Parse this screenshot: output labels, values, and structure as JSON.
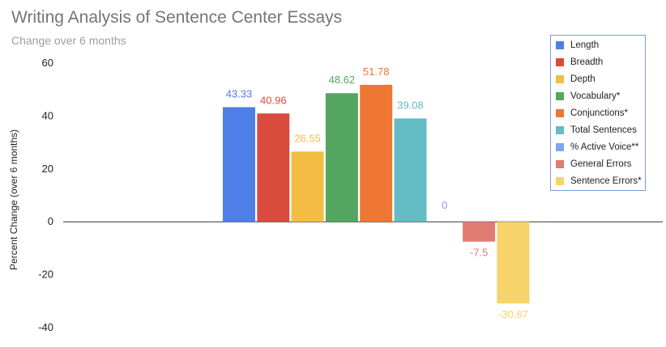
{
  "chart_data": {
    "type": "bar",
    "title": "Writing Analysis of Sentence Center Essays",
    "subtitle": "Change over 6 months",
    "xlabel": "",
    "ylabel": "Percent Change (over 6 months)",
    "ylim": [
      -40,
      60
    ],
    "yticks": [
      60,
      40,
      20,
      0,
      -20,
      -40
    ],
    "legend_position": "right",
    "series": [
      {
        "name": "Length",
        "value": 43.33,
        "label": "43.33",
        "color": "#4e7ee8"
      },
      {
        "name": "Breadth",
        "value": 40.96,
        "label": "40.96",
        "color": "#d94c3d"
      },
      {
        "name": "Depth",
        "value": 26.55,
        "label": "26.55",
        "color": "#f2bd42"
      },
      {
        "name": "Vocabulary*",
        "value": 48.62,
        "label": "48.62",
        "color": "#55a660"
      },
      {
        "name": "Conjunctions*",
        "value": 51.78,
        "label": "51.78",
        "color": "#ee7733"
      },
      {
        "name": "Total Sentences",
        "value": 39.08,
        "label": "39.08",
        "color": "#64bcc4"
      },
      {
        "name": "% Active Voice**",
        "value": 0,
        "label": "0",
        "color": "#7ea6f0"
      },
      {
        "name": "General Errors",
        "value": -7.5,
        "label": "-7.5",
        "color": "#e07b72"
      },
      {
        "name": "Sentence Errors*",
        "value": -30.87,
        "label": "-30.87",
        "color": "#f6d36b"
      }
    ]
  }
}
